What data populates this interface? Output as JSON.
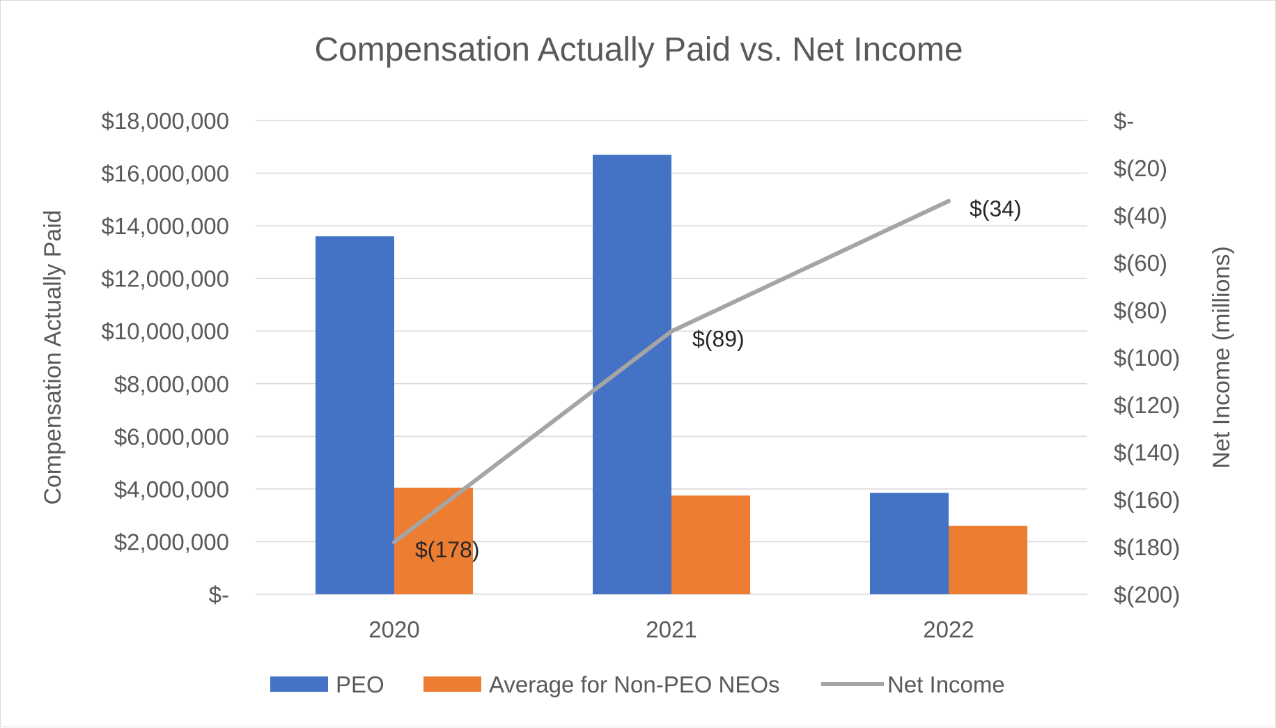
{
  "chart_data": {
    "type": "bar",
    "title": "Compensation Actually Paid vs. Net Income",
    "categories": [
      "2020",
      "2021",
      "2022"
    ],
    "y_left": {
      "label": "Compensation Actually Paid",
      "range": [
        0,
        18000000
      ],
      "ticks": [
        0,
        2000000,
        4000000,
        6000000,
        8000000,
        10000000,
        12000000,
        14000000,
        16000000,
        18000000
      ],
      "tick_labels": [
        "$-",
        "$2,000,000",
        "$4,000,000",
        "$6,000,000",
        "$8,000,000",
        "$10,000,000",
        "$12,000,000",
        "$14,000,000",
        "$16,000,000",
        "$18,000,000"
      ]
    },
    "y_right": {
      "label": "Net Income (millions)",
      "range": [
        -200,
        0
      ],
      "ticks": [
        0,
        -20,
        -40,
        -60,
        -80,
        -100,
        -120,
        -140,
        -160,
        -180,
        -200
      ],
      "tick_labels": [
        "$-",
        "$(20)",
        "$(40)",
        "$(60)",
        "$(80)",
        "$(100)",
        "$(120)",
        "$(140)",
        "$(160)",
        "$(180)",
        "$(200)"
      ]
    },
    "series": [
      {
        "name": "PEO",
        "type": "bar",
        "axis": "left",
        "color": "#4472c4",
        "values": [
          13600000,
          16700000,
          3850000
        ]
      },
      {
        "name": "Average for Non-PEO NEOs",
        "type": "bar",
        "axis": "left",
        "color": "#ed7d31",
        "values": [
          4050000,
          3750000,
          2600000
        ]
      },
      {
        "name": "Net Income",
        "type": "line",
        "axis": "right",
        "color": "#a5a5a5",
        "values": [
          -178,
          -89,
          -34
        ],
        "labels": [
          "$(178)",
          "$(89)",
          "$(34)"
        ]
      }
    ],
    "grid": true,
    "legend": "bottom"
  }
}
